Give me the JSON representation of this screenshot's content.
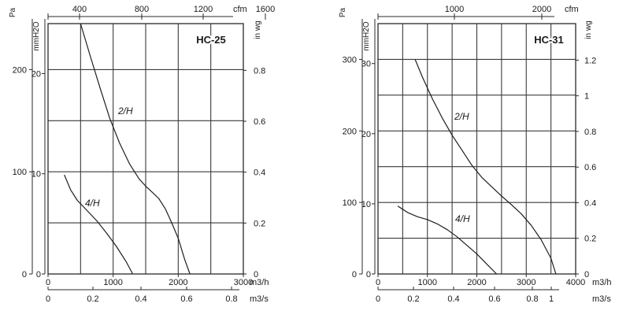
{
  "chart_data": [
    {
      "type": "line",
      "title": "HC-25",
      "x": {
        "label": "m3/h",
        "range": [
          0,
          3000
        ],
        "ticks": [
          0,
          1000,
          2000,
          3000
        ]
      },
      "x_cfm": {
        "label": "cfm",
        "ticks": [
          400,
          800,
          1200,
          1600
        ]
      },
      "x_m3s": {
        "label": "m3/s",
        "ticks": [
          0,
          0.2,
          0.4,
          0.6,
          0.8
        ]
      },
      "y_pa": {
        "label": "Pa",
        "range": [
          0,
          245
        ],
        "ticks": [
          0,
          100,
          200
        ]
      },
      "y_mmh2o": {
        "label": "mmH2O",
        "ticks": [
          0,
          10,
          20
        ]
      },
      "y_inwg": {
        "label": "in wg",
        "ticks": [
          0,
          0.2,
          0.4,
          0.6,
          0.8
        ]
      },
      "grid_x": [
        500,
        1000,
        1500,
        2000,
        2500
      ],
      "grid_y": [
        0,
        50,
        100,
        150,
        200
      ],
      "series": [
        {
          "name": "2/H",
          "x": [
            500,
            650,
            800,
            950,
            1100,
            1250,
            1400,
            1500,
            1600,
            1700,
            1800,
            1900,
            2000,
            2100,
            2180
          ],
          "y": [
            245,
            213,
            182,
            152,
            128,
            108,
            93,
            86,
            80,
            74,
            64,
            50,
            35,
            14,
            0
          ]
        },
        {
          "name": "4/H",
          "x": [
            250,
            350,
            450,
            600,
            750,
            900,
            1050,
            1200,
            1300
          ],
          "y": [
            97,
            82,
            72,
            62,
            52,
            40,
            27,
            12,
            0
          ]
        }
      ]
    },
    {
      "type": "line",
      "title": "HC-31",
      "x": {
        "label": "m3/h",
        "range": [
          0,
          4000
        ],
        "ticks": [
          0,
          1000,
          2000,
          3000,
          4000
        ]
      },
      "x_cfm": {
        "label": "cfm",
        "ticks": [
          1000,
          2000
        ]
      },
      "x_m3s": {
        "label": "m3/s",
        "ticks": [
          0,
          0.2,
          0.4,
          0.6,
          0.8,
          1
        ]
      },
      "y_pa": {
        "label": "Pa",
        "range": [
          0,
          350
        ],
        "ticks": [
          0,
          100,
          200,
          300
        ]
      },
      "y_mmh2o": {
        "label": "mmH2O",
        "ticks": [
          0,
          10,
          20,
          30
        ]
      },
      "y_inwg": {
        "label": "in wg",
        "ticks": [
          0,
          0.2,
          0.4,
          0.6,
          0.8,
          1,
          1.2
        ]
      },
      "grid_x": [
        500,
        1000,
        1500,
        2000,
        2500,
        3000,
        3500
      ],
      "grid_y": [
        0,
        50,
        100,
        150,
        200,
        250,
        300
      ],
      "series": [
        {
          "name": "2/H",
          "x": [
            750,
            900,
            1100,
            1300,
            1500,
            1700,
            1900,
            2100,
            2300,
            2500,
            2700,
            2900,
            3100,
            3300,
            3500,
            3600
          ],
          "y": [
            300,
            275,
            245,
            218,
            194,
            173,
            152,
            135,
            122,
            109,
            97,
            84,
            68,
            48,
            22,
            0
          ]
        },
        {
          "name": "4/H",
          "x": [
            400,
            600,
            800,
            1000,
            1200,
            1400,
            1600,
            1800,
            2000,
            2200,
            2400
          ],
          "y": [
            95,
            86,
            80,
            76,
            70,
            62,
            52,
            40,
            28,
            14,
            0
          ]
        }
      ]
    }
  ]
}
